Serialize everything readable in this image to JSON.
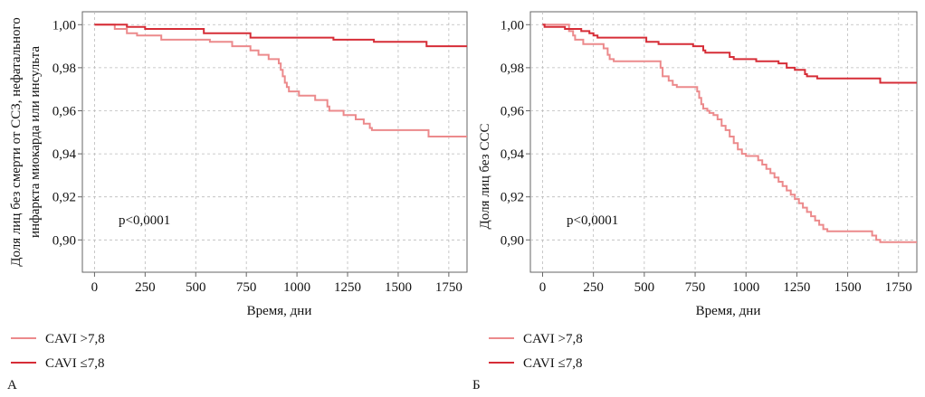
{
  "chart_data": [
    {
      "type": "line",
      "panel_label": "А",
      "ylabel": "Доля лиц без смерти от ССЗ, нефатального инфаркта миокарда или инсульта",
      "ylabel_lines": [
        "Доля лиц без смерти от ССЗ, нефатального",
        "инфаркта миокарда или инсульта"
      ],
      "xlabel": "Время, дни",
      "x_ticks": [
        0,
        250,
        500,
        750,
        1000,
        1250,
        1500,
        1750
      ],
      "y_ticks": [
        "0,90",
        "0,92",
        "0,94",
        "0,96",
        "0,98",
        "1,00"
      ],
      "y_tick_values": [
        0.9,
        0.92,
        0.94,
        0.96,
        0.98,
        1.0
      ],
      "xlim": [
        -60,
        1840
      ],
      "ylim": [
        0.885,
        1.006
      ],
      "grid": true,
      "annotation": "p<0,0001",
      "series": [
        {
          "name": "CAVI >7,8",
          "color": "#ec8a8c",
          "points": [
            [
              0,
              1.0
            ],
            [
              80,
              1.0
            ],
            [
              100,
              0.998
            ],
            [
              140,
              0.998
            ],
            [
              160,
              0.996
            ],
            [
              200,
              0.996
            ],
            [
              210,
              0.995
            ],
            [
              320,
              0.995
            ],
            [
              330,
              0.993
            ],
            [
              560,
              0.993
            ],
            [
              570,
              0.992
            ],
            [
              670,
              0.992
            ],
            [
              680,
              0.99
            ],
            [
              760,
              0.99
            ],
            [
              770,
              0.988
            ],
            [
              800,
              0.988
            ],
            [
              810,
              0.986
            ],
            [
              850,
              0.986
            ],
            [
              860,
              0.984
            ],
            [
              900,
              0.984
            ],
            [
              910,
              0.982
            ],
            [
              920,
              0.979
            ],
            [
              930,
              0.976
            ],
            [
              940,
              0.973
            ],
            [
              950,
              0.971
            ],
            [
              960,
              0.969
            ],
            [
              1000,
              0.969
            ],
            [
              1010,
              0.967
            ],
            [
              1080,
              0.967
            ],
            [
              1090,
              0.965
            ],
            [
              1140,
              0.965
            ],
            [
              1150,
              0.962
            ],
            [
              1160,
              0.96
            ],
            [
              1220,
              0.96
            ],
            [
              1230,
              0.958
            ],
            [
              1280,
              0.958
            ],
            [
              1290,
              0.956
            ],
            [
              1320,
              0.956
            ],
            [
              1330,
              0.954
            ],
            [
              1350,
              0.954
            ],
            [
              1360,
              0.952
            ],
            [
              1370,
              0.951
            ],
            [
              1640,
              0.951
            ],
            [
              1650,
              0.948
            ],
            [
              1840,
              0.948
            ]
          ]
        },
        {
          "name": "CAVI ≤7,8",
          "color": "#d62d37",
          "points": [
            [
              0,
              1.0
            ],
            [
              150,
              1.0
            ],
            [
              160,
              0.999
            ],
            [
              240,
              0.999
            ],
            [
              250,
              0.998
            ],
            [
              530,
              0.998
            ],
            [
              540,
              0.996
            ],
            [
              760,
              0.996
            ],
            [
              770,
              0.994
            ],
            [
              1170,
              0.994
            ],
            [
              1180,
              0.993
            ],
            [
              1370,
              0.993
            ],
            [
              1380,
              0.992
            ],
            [
              1630,
              0.992
            ],
            [
              1640,
              0.99
            ],
            [
              1840,
              0.99
            ]
          ]
        }
      ]
    },
    {
      "type": "line",
      "panel_label": "Б",
      "ylabel": "Доля лиц без ССС",
      "ylabel_lines": [
        "Доля лиц без ССС"
      ],
      "xlabel": "Время, дни",
      "x_ticks": [
        0,
        250,
        500,
        750,
        1000,
        1250,
        1500,
        1750
      ],
      "y_ticks": [
        "0,90",
        "0,92",
        "0,94",
        "0,96",
        "0,98",
        "1,00"
      ],
      "y_tick_values": [
        0.9,
        0.92,
        0.94,
        0.96,
        0.98,
        1.0
      ],
      "xlim": [
        -60,
        1840
      ],
      "ylim": [
        0.885,
        1.006
      ],
      "grid": true,
      "annotation": "p<0,0001",
      "series": [
        {
          "name": "CAVI >7,8",
          "color": "#ec8a8c",
          "points": [
            [
              0,
              1.0
            ],
            [
              120,
              1.0
            ],
            [
              130,
              0.997
            ],
            [
              150,
              0.995
            ],
            [
              160,
              0.993
            ],
            [
              190,
              0.993
            ],
            [
              200,
              0.991
            ],
            [
              290,
              0.991
            ],
            [
              300,
              0.989
            ],
            [
              320,
              0.986
            ],
            [
              330,
              0.984
            ],
            [
              350,
              0.983
            ],
            [
              570,
              0.983
            ],
            [
              580,
              0.98
            ],
            [
              590,
              0.976
            ],
            [
              620,
              0.974
            ],
            [
              640,
              0.972
            ],
            [
              660,
              0.971
            ],
            [
              750,
              0.971
            ],
            [
              760,
              0.969
            ],
            [
              770,
              0.966
            ],
            [
              780,
              0.963
            ],
            [
              790,
              0.961
            ],
            [
              810,
              0.96
            ],
            [
              820,
              0.959
            ],
            [
              840,
              0.958
            ],
            [
              860,
              0.956
            ],
            [
              880,
              0.953
            ],
            [
              900,
              0.951
            ],
            [
              920,
              0.948
            ],
            [
              940,
              0.945
            ],
            [
              960,
              0.942
            ],
            [
              980,
              0.94
            ],
            [
              1000,
              0.939
            ],
            [
              1050,
              0.939
            ],
            [
              1060,
              0.937
            ],
            [
              1080,
              0.935
            ],
            [
              1100,
              0.933
            ],
            [
              1120,
              0.931
            ],
            [
              1140,
              0.929
            ],
            [
              1160,
              0.927
            ],
            [
              1180,
              0.925
            ],
            [
              1200,
              0.923
            ],
            [
              1220,
              0.921
            ],
            [
              1240,
              0.919
            ],
            [
              1260,
              0.917
            ],
            [
              1280,
              0.915
            ],
            [
              1300,
              0.913
            ],
            [
              1320,
              0.911
            ],
            [
              1340,
              0.909
            ],
            [
              1360,
              0.907
            ],
            [
              1380,
              0.905
            ],
            [
              1400,
              0.904
            ],
            [
              1610,
              0.904
            ],
            [
              1620,
              0.902
            ],
            [
              1640,
              0.9
            ],
            [
              1660,
              0.899
            ],
            [
              1840,
              0.899
            ]
          ]
        },
        {
          "name": "CAVI ≤7,8",
          "color": "#d62d37",
          "points": [
            [
              0,
              1.0
            ],
            [
              10,
              0.999
            ],
            [
              100,
              0.999
            ],
            [
              110,
              0.998
            ],
            [
              180,
              0.998
            ],
            [
              190,
              0.997
            ],
            [
              220,
              0.997
            ],
            [
              230,
              0.996
            ],
            [
              250,
              0.995
            ],
            [
              270,
              0.994
            ],
            [
              500,
              0.994
            ],
            [
              510,
              0.992
            ],
            [
              560,
              0.992
            ],
            [
              570,
              0.991
            ],
            [
              730,
              0.991
            ],
            [
              740,
              0.99
            ],
            [
              780,
              0.99
            ],
            [
              790,
              0.988
            ],
            [
              800,
              0.987
            ],
            [
              910,
              0.987
            ],
            [
              920,
              0.985
            ],
            [
              940,
              0.984
            ],
            [
              1040,
              0.984
            ],
            [
              1050,
              0.983
            ],
            [
              1150,
              0.983
            ],
            [
              1160,
              0.982
            ],
            [
              1190,
              0.982
            ],
            [
              1200,
              0.98
            ],
            [
              1230,
              0.98
            ],
            [
              1240,
              0.979
            ],
            [
              1280,
              0.979
            ],
            [
              1290,
              0.977
            ],
            [
              1300,
              0.976
            ],
            [
              1340,
              0.976
            ],
            [
              1350,
              0.975
            ],
            [
              1650,
              0.975
            ],
            [
              1660,
              0.973
            ],
            [
              1840,
              0.973
            ]
          ]
        }
      ]
    }
  ]
}
